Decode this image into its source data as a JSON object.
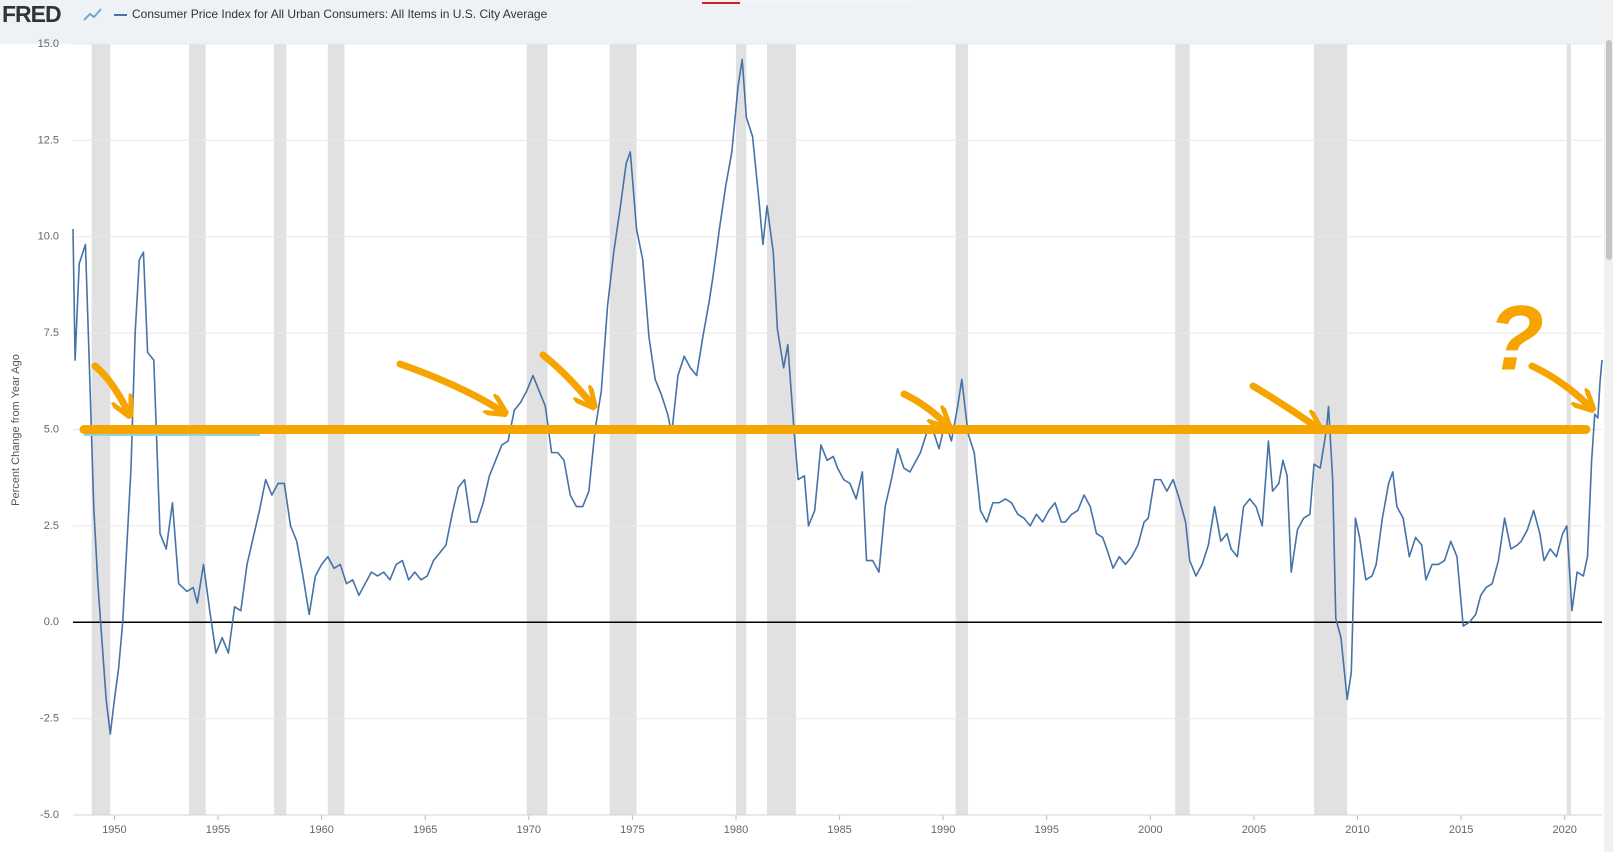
{
  "header": {
    "logo": "FRED"
  },
  "chart_data": {
    "type": "line",
    "y_axis_label": "Percent Change from Year Ago",
    "xlim": [
      1948,
      2021.8
    ],
    "ylim": [
      -5,
      15
    ],
    "xticks": [
      1950,
      1955,
      1960,
      1965,
      1970,
      1975,
      1980,
      1985,
      1990,
      1995,
      2000,
      2005,
      2010,
      2015,
      2020
    ],
    "yticks": [
      {
        "value": -5,
        "label": "-5.0"
      },
      {
        "value": -2.5,
        "label": "-2.5"
      },
      {
        "value": 0,
        "label": "0.0"
      },
      {
        "value": 2.5,
        "label": "2.5"
      },
      {
        "value": 5,
        "label": "5.0"
      },
      {
        "value": 7.5,
        "label": "7.5"
      },
      {
        "value": 10,
        "label": "10.0"
      },
      {
        "value": 12.5,
        "label": "12.5"
      },
      {
        "value": 15,
        "label": "15.0"
      }
    ],
    "grid": true,
    "zero_line": 0,
    "recession_color": "#e1e1e1",
    "recessions": [
      [
        1948.9,
        1949.8
      ],
      [
        1953.6,
        1954.4
      ],
      [
        1957.7,
        1958.3
      ],
      [
        1960.3,
        1961.1
      ],
      [
        1969.9,
        1970.9
      ],
      [
        1973.9,
        1975.2
      ],
      [
        1980.0,
        1980.5
      ],
      [
        1981.5,
        1982.9
      ],
      [
        1990.6,
        1991.2
      ],
      [
        2001.2,
        2001.9
      ],
      [
        2007.9,
        2009.5
      ],
      [
        2020.1,
        2020.3
      ]
    ],
    "annotation_line": 5,
    "annotation_color": "#f5a400",
    "annotation_text": "?",
    "x": [
      1948.0,
      1948.1,
      1948.3,
      1948.6,
      1948.8,
      1949.0,
      1949.2,
      1949.4,
      1949.6,
      1949.8,
      1950.0,
      1950.2,
      1950.4,
      1950.6,
      1950.8,
      1951.0,
      1951.2,
      1951.4,
      1951.6,
      1951.9,
      1952.2,
      1952.5,
      1952.8,
      1953.1,
      1953.5,
      1953.8,
      1954.0,
      1954.3,
      1954.6,
      1954.9,
      1955.2,
      1955.5,
      1955.8,
      1956.1,
      1956.4,
      1956.7,
      1957.0,
      1957.3,
      1957.6,
      1957.9,
      1958.2,
      1958.5,
      1958.8,
      1959.1,
      1959.4,
      1959.7,
      1960.0,
      1960.3,
      1960.6,
      1960.9,
      1961.2,
      1961.5,
      1961.8,
      1962.1,
      1962.4,
      1962.7,
      1963.0,
      1963.3,
      1963.6,
      1963.9,
      1964.2,
      1964.5,
      1964.8,
      1965.1,
      1965.4,
      1965.7,
      1966.0,
      1966.3,
      1966.6,
      1966.9,
      1967.2,
      1967.5,
      1967.8,
      1968.1,
      1968.4,
      1968.7,
      1969.0,
      1969.3,
      1969.6,
      1969.9,
      1970.2,
      1970.5,
      1970.8,
      1971.1,
      1971.4,
      1971.7,
      1972.0,
      1972.3,
      1972.6,
      1972.9,
      1973.2,
      1973.5,
      1973.8,
      1974.1,
      1974.4,
      1974.7,
      1974.9,
      1975.2,
      1975.5,
      1975.8,
      1976.1,
      1976.4,
      1976.7,
      1976.9,
      1977.2,
      1977.5,
      1977.8,
      1978.1,
      1978.4,
      1978.7,
      1978.9,
      1979.2,
      1979.5,
      1979.8,
      1980.1,
      1980.3,
      1980.5,
      1980.8,
      1981.1,
      1981.3,
      1981.5,
      1981.8,
      1982.0,
      1982.3,
      1982.5,
      1982.8,
      1983.0,
      1983.3,
      1983.5,
      1983.8,
      1984.1,
      1984.4,
      1984.7,
      1984.9,
      1985.2,
      1985.5,
      1985.8,
      1986.1,
      1986.3,
      1986.6,
      1986.9,
      1987.2,
      1987.5,
      1987.8,
      1988.1,
      1988.4,
      1988.7,
      1988.9,
      1989.2,
      1989.5,
      1989.8,
      1990.1,
      1990.4,
      1990.7,
      1990.9,
      1991.2,
      1991.5,
      1991.8,
      1992.1,
      1992.4,
      1992.7,
      1993.0,
      1993.3,
      1993.6,
      1993.9,
      1994.2,
      1994.5,
      1994.8,
      1995.1,
      1995.4,
      1995.7,
      1995.9,
      1996.2,
      1996.5,
      1996.8,
      1997.1,
      1997.4,
      1997.7,
      1997.9,
      1998.2,
      1998.5,
      1998.8,
      1999.1,
      1999.4,
      1999.7,
      1999.9,
      2000.2,
      2000.5,
      2000.8,
      2001.1,
      2001.4,
      2001.7,
      2001.9,
      2002.2,
      2002.5,
      2002.8,
      2003.1,
      2003.4,
      2003.7,
      2003.9,
      2004.2,
      2004.5,
      2004.8,
      2005.1,
      2005.4,
      2005.7,
      2005.9,
      2006.2,
      2006.4,
      2006.6,
      2006.8,
      2007.1,
      2007.4,
      2007.7,
      2007.9,
      2008.2,
      2008.5,
      2008.6,
      2008.8,
      2008.95,
      2009.2,
      2009.5,
      2009.7,
      2009.9,
      2010.1,
      2010.4,
      2010.7,
      2010.9,
      2011.2,
      2011.5,
      2011.7,
      2011.9,
      2012.2,
      2012.5,
      2012.8,
      2013.1,
      2013.3,
      2013.6,
      2013.9,
      2014.2,
      2014.5,
      2014.8,
      2014.95,
      2015.1,
      2015.4,
      2015.7,
      2015.95,
      2016.2,
      2016.5,
      2016.8,
      2017.1,
      2017.4,
      2017.7,
      2017.9,
      2018.2,
      2018.5,
      2018.8,
      2019.0,
      2019.3,
      2019.6,
      2019.9,
      2020.1,
      2020.35,
      2020.6,
      2020.9,
      2021.1,
      2021.3,
      2021.45,
      2021.6,
      2021.7,
      2021.8
    ],
    "series": [
      {
        "name": "Consumer Price Index for All Urban Consumers: All Items in U.S. City Average",
        "color": "#4572a7",
        "values": [
          10.2,
          6.8,
          9.3,
          9.8,
          6.5,
          3.0,
          1.0,
          -0.5,
          -2.0,
          -2.9,
          -2.0,
          -1.2,
          0.0,
          2.0,
          4.0,
          7.5,
          9.4,
          9.6,
          7.0,
          6.8,
          2.3,
          1.9,
          3.1,
          1.0,
          0.8,
          0.9,
          0.5,
          1.5,
          0.3,
          -0.8,
          -0.4,
          -0.8,
          0.4,
          0.3,
          1.5,
          2.2,
          2.9,
          3.7,
          3.3,
          3.6,
          3.6,
          2.5,
          2.1,
          1.2,
          0.2,
          1.2,
          1.5,
          1.7,
          1.4,
          1.5,
          1.0,
          1.1,
          0.7,
          1.0,
          1.3,
          1.2,
          1.3,
          1.1,
          1.5,
          1.6,
          1.1,
          1.3,
          1.1,
          1.2,
          1.6,
          1.8,
          2.0,
          2.8,
          3.5,
          3.7,
          2.6,
          2.6,
          3.1,
          3.8,
          4.2,
          4.6,
          4.7,
          5.5,
          5.7,
          6.0,
          6.4,
          6.0,
          5.6,
          4.4,
          4.4,
          4.2,
          3.3,
          3.0,
          3.0,
          3.4,
          5.0,
          6.0,
          8.2,
          9.6,
          10.7,
          11.9,
          12.2,
          10.2,
          9.4,
          7.4,
          6.3,
          5.9,
          5.4,
          4.9,
          6.4,
          6.9,
          6.6,
          6.4,
          7.4,
          8.3,
          9.0,
          10.2,
          11.3,
          12.2,
          13.9,
          14.6,
          13.1,
          12.6,
          11.0,
          9.8,
          10.8,
          9.6,
          7.6,
          6.6,
          7.2,
          5.0,
          3.7,
          3.8,
          2.5,
          2.9,
          4.6,
          4.2,
          4.3,
          4.0,
          3.7,
          3.6,
          3.2,
          3.9,
          1.6,
          1.6,
          1.3,
          3.0,
          3.7,
          4.5,
          4.0,
          3.9,
          4.2,
          4.4,
          4.9,
          5.0,
          4.5,
          5.2,
          4.7,
          5.6,
          6.3,
          4.9,
          4.4,
          2.9,
          2.6,
          3.1,
          3.1,
          3.2,
          3.1,
          2.8,
          2.7,
          2.5,
          2.8,
          2.6,
          2.9,
          3.1,
          2.6,
          2.6,
          2.8,
          2.9,
          3.3,
          3.0,
          2.3,
          2.2,
          1.9,
          1.4,
          1.7,
          1.5,
          1.7,
          2.0,
          2.6,
          2.7,
          3.7,
          3.7,
          3.4,
          3.7,
          3.2,
          2.6,
          1.6,
          1.2,
          1.5,
          2.0,
          3.0,
          2.1,
          2.3,
          1.9,
          1.7,
          3.0,
          3.2,
          3.0,
          2.5,
          4.7,
          3.4,
          3.6,
          4.2,
          3.8,
          1.3,
          2.4,
          2.7,
          2.8,
          4.1,
          4.0,
          5.0,
          5.6,
          3.7,
          0.1,
          -0.4,
          -2.0,
          -1.3,
          2.7,
          2.2,
          1.1,
          1.2,
          1.5,
          2.7,
          3.6,
          3.9,
          3.0,
          2.7,
          1.7,
          2.2,
          2.0,
          1.1,
          1.5,
          1.5,
          1.6,
          2.1,
          1.7,
          0.8,
          -0.1,
          0.0,
          0.2,
          0.7,
          0.9,
          1.0,
          1.6,
          2.7,
          1.9,
          2.0,
          2.1,
          2.4,
          2.9,
          2.3,
          1.6,
          1.9,
          1.7,
          2.3,
          2.5,
          0.3,
          1.3,
          1.2,
          1.7,
          4.2,
          5.4,
          5.3,
          6.2,
          6.8
        ]
      }
    ]
  }
}
